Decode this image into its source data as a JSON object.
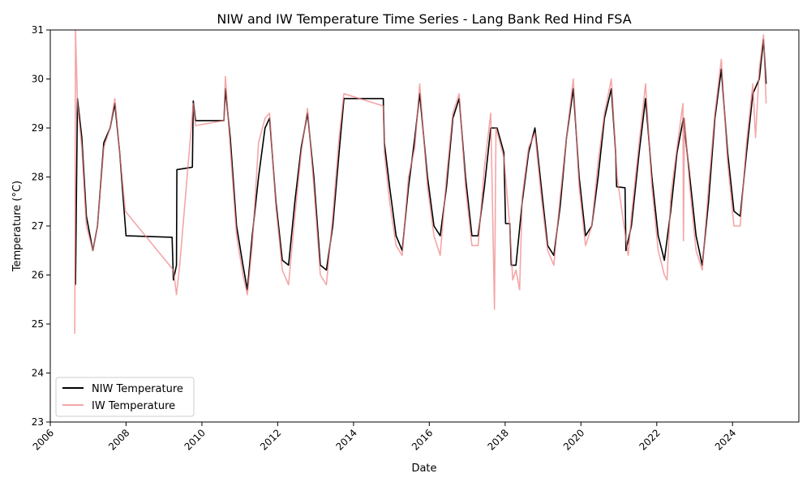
{
  "chart_data": {
    "type": "line",
    "title": "NIW and IW Temperature Time Series - Lang Bank Red Hind FSA",
    "xlabel": "Date",
    "ylabel": "Temperature (°C)",
    "xlim": [
      "2006-01-01",
      "2025-10-01"
    ],
    "ylim": [
      23,
      31
    ],
    "x_ticks": [
      "2006",
      "2008",
      "2010",
      "2012",
      "2014",
      "2016",
      "2018",
      "2020",
      "2022",
      "2024"
    ],
    "y_ticks": [
      23,
      24,
      25,
      26,
      27,
      28,
      29,
      30,
      31
    ],
    "grid": false,
    "legend_position": "lower-left",
    "series": [
      {
        "name": "NIW Temperature",
        "color": "#000000",
        "points": [
          [
            "2006-09-01",
            25.8
          ],
          [
            "2006-09-20",
            29.6
          ],
          [
            "2006-11-01",
            28.8
          ],
          [
            "2006-12-15",
            27.2
          ],
          [
            "2007-02-15",
            26.5
          ],
          [
            "2007-04-01",
            27.0
          ],
          [
            "2007-06-01",
            28.7
          ],
          [
            "2007-08-01",
            29.0
          ],
          [
            "2007-09-15",
            29.5
          ],
          [
            "2007-11-01",
            28.5
          ],
          [
            "2007-12-25",
            27.0
          ],
          [
            "2008-01-01",
            26.8
          ],
          [
            "2009-03-20",
            26.77
          ],
          [
            "2009-04-01",
            25.9
          ],
          [
            "2009-05-01",
            26.2
          ],
          [
            "2009-05-05",
            28.15
          ],
          [
            "2009-10-01",
            28.2
          ],
          [
            "2009-10-10",
            29.55
          ],
          [
            "2009-11-01",
            29.15
          ],
          [
            "2010-08-01",
            29.15
          ],
          [
            "2010-08-15",
            29.8
          ],
          [
            "2010-10-01",
            28.8
          ],
          [
            "2010-12-01",
            27.0
          ],
          [
            "2011-02-01",
            26.2
          ],
          [
            "2011-03-15",
            25.7
          ],
          [
            "2011-05-01",
            26.8
          ],
          [
            "2011-07-01",
            28.0
          ],
          [
            "2011-09-01",
            29.0
          ],
          [
            "2011-10-15",
            29.2
          ],
          [
            "2011-12-15",
            27.5
          ],
          [
            "2012-02-15",
            26.3
          ],
          [
            "2012-04-15",
            26.2
          ],
          [
            "2012-06-15",
            27.5
          ],
          [
            "2012-08-15",
            28.6
          ],
          [
            "2012-10-15",
            29.3
          ],
          [
            "2012-12-15",
            28.0
          ],
          [
            "2013-02-15",
            26.2
          ],
          [
            "2013-04-15",
            26.1
          ],
          [
            "2013-06-15",
            27.0
          ],
          [
            "2013-08-15",
            28.5
          ],
          [
            "2013-10-01",
            29.6
          ],
          [
            "2014-10-15",
            29.6
          ],
          [
            "2014-10-25",
            28.7
          ],
          [
            "2014-12-15",
            27.8
          ],
          [
            "2015-02-15",
            26.8
          ],
          [
            "2015-04-15",
            26.5
          ],
          [
            "2015-06-15",
            27.8
          ],
          [
            "2015-08-15",
            28.8
          ],
          [
            "2015-10-01",
            29.7
          ],
          [
            "2015-12-15",
            28.0
          ],
          [
            "2016-02-15",
            27.0
          ],
          [
            "2016-04-15",
            26.8
          ],
          [
            "2016-06-15",
            27.8
          ],
          [
            "2016-08-15",
            29.2
          ],
          [
            "2016-10-15",
            29.6
          ],
          [
            "2016-12-15",
            28.0
          ],
          [
            "2017-02-15",
            26.8
          ],
          [
            "2017-04-15",
            26.8
          ],
          [
            "2017-06-15",
            27.8
          ],
          [
            "2017-08-15",
            29.0
          ],
          [
            "2017-10-15",
            29.0
          ],
          [
            "2017-12-20",
            28.5
          ],
          [
            "2018-01-05",
            27.05
          ],
          [
            "2018-02-15",
            27.05
          ],
          [
            "2018-03-01",
            26.2
          ],
          [
            "2018-04-15",
            26.2
          ],
          [
            "2018-06-15",
            27.5
          ],
          [
            "2018-08-15",
            28.5
          ],
          [
            "2018-10-15",
            29.0
          ],
          [
            "2018-12-15",
            27.8
          ],
          [
            "2019-02-15",
            26.6
          ],
          [
            "2019-04-15",
            26.4
          ],
          [
            "2019-06-15",
            27.4
          ],
          [
            "2019-08-15",
            28.8
          ],
          [
            "2019-10-20",
            29.8
          ],
          [
            "2019-12-15",
            28.0
          ],
          [
            "2020-02-15",
            26.8
          ],
          [
            "2020-04-15",
            27.0
          ],
          [
            "2020-06-15",
            28.0
          ],
          [
            "2020-08-15",
            29.2
          ],
          [
            "2020-10-20",
            29.8
          ],
          [
            "2020-12-01",
            28.5
          ],
          [
            "2020-12-10",
            27.8
          ],
          [
            "2021-03-01",
            27.78
          ],
          [
            "2021-03-10",
            26.5
          ],
          [
            "2021-05-01",
            27.0
          ],
          [
            "2021-07-15",
            28.5
          ],
          [
            "2021-09-15",
            29.6
          ],
          [
            "2021-11-15",
            28.0
          ],
          [
            "2022-01-15",
            26.8
          ],
          [
            "2022-03-15",
            26.3
          ],
          [
            "2022-05-15",
            27.3
          ],
          [
            "2022-07-15",
            28.5
          ],
          [
            "2022-09-15",
            29.2
          ],
          [
            "2022-11-15",
            28.0
          ],
          [
            "2023-01-15",
            26.8
          ],
          [
            "2023-03-15",
            26.2
          ],
          [
            "2023-05-15",
            27.5
          ],
          [
            "2023-07-15",
            29.2
          ],
          [
            "2023-09-15",
            30.2
          ],
          [
            "2023-11-15",
            28.5
          ],
          [
            "2024-01-15",
            27.3
          ],
          [
            "2024-03-15",
            27.2
          ],
          [
            "2024-05-15",
            28.5
          ],
          [
            "2024-07-15",
            29.7
          ],
          [
            "2024-09-15",
            30.0
          ],
          [
            "2024-10-25",
            30.8
          ],
          [
            "2024-11-20",
            29.9
          ]
        ]
      },
      {
        "name": "IW Temperature",
        "color": "#f08080",
        "points": [
          [
            "2006-08-25",
            24.8
          ],
          [
            "2006-09-01",
            31.0
          ],
          [
            "2006-09-20",
            29.5
          ],
          [
            "2006-11-01",
            28.6
          ],
          [
            "2006-12-15",
            27.0
          ],
          [
            "2007-02-15",
            26.5
          ],
          [
            "2007-04-01",
            27.0
          ],
          [
            "2007-06-01",
            28.6
          ],
          [
            "2007-08-01",
            29.0
          ],
          [
            "2007-09-15",
            29.6
          ],
          [
            "2007-11-01",
            28.5
          ],
          [
            "2007-12-25",
            27.3
          ],
          [
            "2009-04-01",
            26.1
          ],
          [
            "2009-05-01",
            25.6
          ],
          [
            "2009-06-01",
            26.2
          ],
          [
            "2009-10-10",
            29.5
          ],
          [
            "2009-11-01",
            29.05
          ],
          [
            "2010-08-01",
            29.15
          ],
          [
            "2010-08-15",
            30.05
          ],
          [
            "2010-10-01",
            28.6
          ],
          [
            "2010-12-01",
            26.8
          ],
          [
            "2011-02-01",
            26.0
          ],
          [
            "2011-03-15",
            25.6
          ],
          [
            "2011-05-01",
            26.6
          ],
          [
            "2011-07-01",
            28.7
          ],
          [
            "2011-09-01",
            29.2
          ],
          [
            "2011-10-15",
            29.3
          ],
          [
            "2011-12-15",
            27.4
          ],
          [
            "2012-02-15",
            26.1
          ],
          [
            "2012-04-15",
            25.8
          ],
          [
            "2012-06-15",
            27.2
          ],
          [
            "2012-08-15",
            28.5
          ],
          [
            "2012-10-15",
            29.4
          ],
          [
            "2012-12-15",
            27.8
          ],
          [
            "2013-02-15",
            26.0
          ],
          [
            "2013-04-15",
            25.8
          ],
          [
            "2013-06-15",
            27.2
          ],
          [
            "2013-08-15",
            28.8
          ],
          [
            "2013-10-01",
            29.7
          ],
          [
            "2014-10-15",
            29.45
          ],
          [
            "2014-10-25",
            28.5
          ],
          [
            "2014-12-15",
            27.5
          ],
          [
            "2015-02-15",
            26.6
          ],
          [
            "2015-04-15",
            26.4
          ],
          [
            "2015-06-15",
            28.0
          ],
          [
            "2015-08-15",
            28.6
          ],
          [
            "2015-10-01",
            29.9
          ],
          [
            "2015-12-15",
            27.8
          ],
          [
            "2016-02-15",
            26.8
          ],
          [
            "2016-04-15",
            26.4
          ],
          [
            "2016-06-15",
            28.0
          ],
          [
            "2016-08-15",
            29.3
          ],
          [
            "2016-10-15",
            29.7
          ],
          [
            "2016-12-15",
            27.8
          ],
          [
            "2017-02-15",
            26.6
          ],
          [
            "2017-04-15",
            26.6
          ],
          [
            "2017-06-15",
            28.2
          ],
          [
            "2017-08-15",
            29.3
          ],
          [
            "2017-09-20",
            25.3
          ],
          [
            "2017-10-05",
            29.0
          ],
          [
            "2017-12-20",
            28.4
          ],
          [
            "2018-02-15",
            27.0
          ],
          [
            "2018-03-15",
            25.9
          ],
          [
            "2018-04-15",
            26.1
          ],
          [
            "2018-05-20",
            25.7
          ],
          [
            "2018-06-15",
            27.6
          ],
          [
            "2018-08-15",
            28.6
          ],
          [
            "2018-10-15",
            28.9
          ],
          [
            "2018-12-15",
            27.6
          ],
          [
            "2019-02-15",
            26.5
          ],
          [
            "2019-04-15",
            26.2
          ],
          [
            "2019-06-15",
            27.6
          ],
          [
            "2019-08-15",
            28.8
          ],
          [
            "2019-10-20",
            30.0
          ],
          [
            "2019-12-15",
            27.8
          ],
          [
            "2020-02-15",
            26.6
          ],
          [
            "2020-04-15",
            27.0
          ],
          [
            "2020-06-15",
            28.3
          ],
          [
            "2020-08-15",
            29.3
          ],
          [
            "2020-10-20",
            30.0
          ],
          [
            "2020-12-15",
            28.0
          ],
          [
            "2021-04-01",
            26.4
          ],
          [
            "2021-05-01",
            27.2
          ],
          [
            "2021-07-15",
            28.7
          ],
          [
            "2021-09-15",
            29.9
          ],
          [
            "2021-11-15",
            27.8
          ],
          [
            "2022-01-15",
            26.5
          ],
          [
            "2022-03-15",
            26.0
          ],
          [
            "2022-04-10",
            25.9
          ],
          [
            "2022-05-15",
            27.6
          ],
          [
            "2022-07-15",
            28.6
          ],
          [
            "2022-09-10",
            29.5
          ],
          [
            "2022-09-15",
            26.7
          ],
          [
            "2022-09-25",
            29.2
          ],
          [
            "2022-11-15",
            27.8
          ],
          [
            "2023-01-15",
            26.5
          ],
          [
            "2023-03-15",
            26.1
          ],
          [
            "2023-05-15",
            27.8
          ],
          [
            "2023-07-15",
            29.3
          ],
          [
            "2023-09-15",
            30.4
          ],
          [
            "2023-11-15",
            28.3
          ],
          [
            "2024-01-15",
            27.0
          ],
          [
            "2024-03-15",
            27.0
          ],
          [
            "2024-05-15",
            28.7
          ],
          [
            "2024-07-15",
            29.9
          ],
          [
            "2024-08-10",
            28.8
          ],
          [
            "2024-09-15",
            30.2
          ],
          [
            "2024-10-25",
            30.9
          ],
          [
            "2024-11-20",
            29.5
          ]
        ]
      }
    ]
  }
}
